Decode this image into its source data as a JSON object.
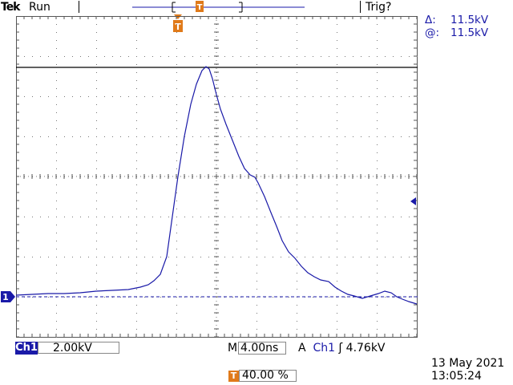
{
  "header": {
    "brand": "Tek",
    "run_state": "Run",
    "trigger_state": "Trig?"
  },
  "measurement": {
    "delta_symbol": "Δ:",
    "delta_value": "11.5kV",
    "at_symbol": "@:",
    "at_value": "11.5kV"
  },
  "channel": {
    "name": "Ch1",
    "scale": "2.00kV",
    "ground_marker": "1",
    "color": "#1a1aa8"
  },
  "timebase": {
    "label": "M",
    "value": "4.00ns"
  },
  "trigger": {
    "mode": "A",
    "source": "Ch1",
    "slope_icon": "rising-edge-icon",
    "slope_glyph": "ʃ",
    "level": "4.76kV",
    "marker": "T",
    "position": "40.00 %",
    "color": "#e07a1a"
  },
  "footer": {
    "date": "13 May 2021",
    "time": "13:05:24"
  }
}
